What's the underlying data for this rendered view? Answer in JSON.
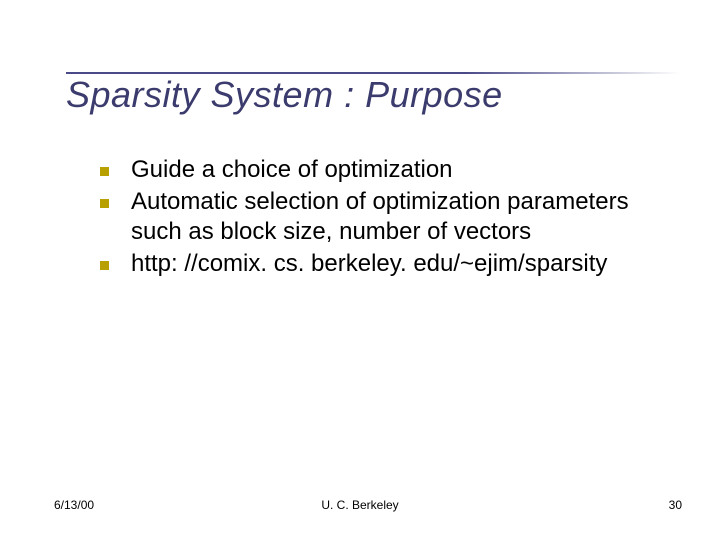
{
  "colors": {
    "title_color": "#3b3b6d",
    "rule_color": "#4a4a88",
    "bullet_marker_color": "#b8a000",
    "body_text_color": "#000000",
    "background": "#ffffff"
  },
  "typography": {
    "title_font": "Verdana",
    "title_size_pt": 36,
    "title_style": "italic",
    "body_font": "Verdana",
    "body_size_pt": 24,
    "footer_size_pt": 12
  },
  "title": "Sparsity System : Purpose",
  "bullets": [
    {
      "text": "Guide a choice of optimization"
    },
    {
      "text": "Automatic selection of optimization parameters such as block size, number of vectors"
    },
    {
      "text": "http: //comix. cs. berkeley. edu/~ejim/sparsity"
    }
  ],
  "footer": {
    "date": "6/13/00",
    "org": "U. C. Berkeley",
    "page": "30"
  }
}
